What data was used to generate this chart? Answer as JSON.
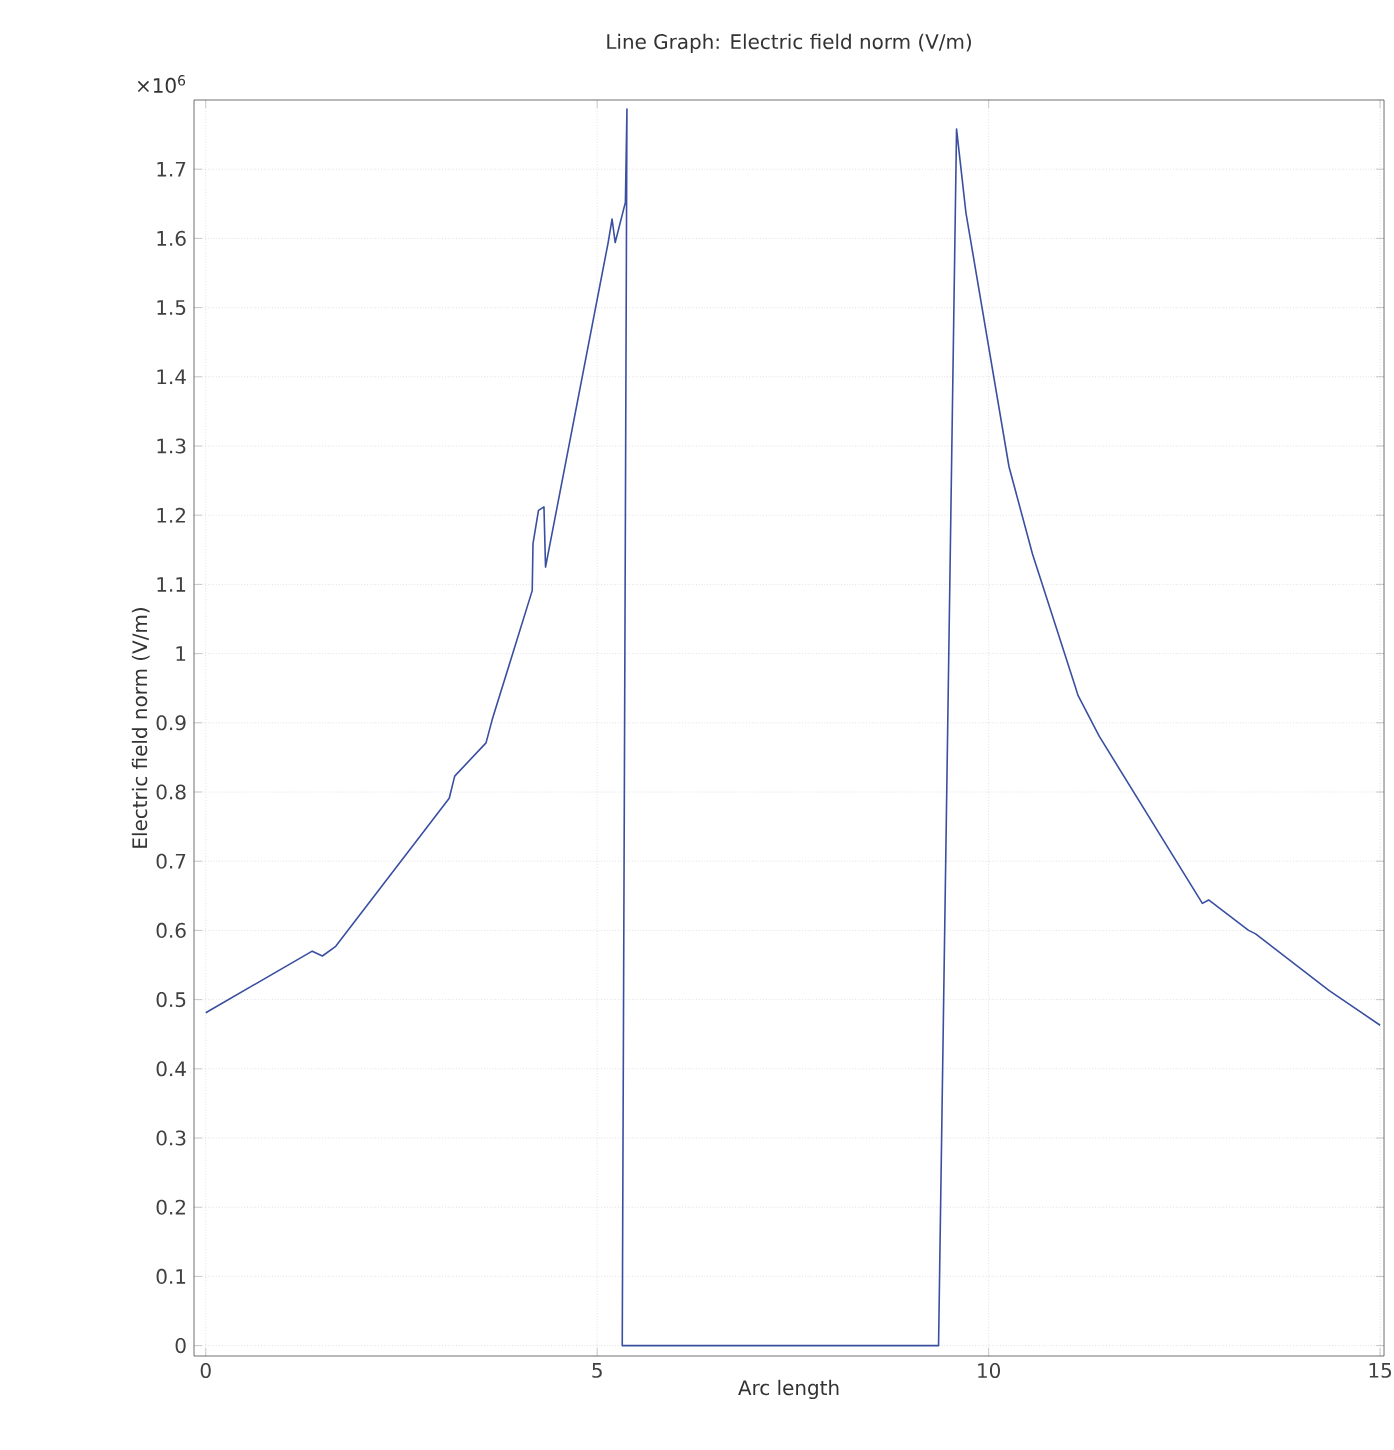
{
  "chart_data": {
    "type": "line",
    "title": "Line Graph: Electric field norm (V/m)",
    "xlabel": "Arc length",
    "ylabel": "Electric field norm (V/m)",
    "annotations": [
      "×10$^{6}$"
    ],
    "x": [
      0,
      1.36,
      1.49,
      1.66,
      3.11,
      3.18,
      3.58,
      3.66,
      4.17,
      4.18,
      4.25,
      4.32,
      4.34,
      5.14,
      5.19,
      5.23,
      5.36,
      5.38,
      5.32,
      9.36,
      9.59,
      9.71,
      10.26,
      10.56,
      11.11,
      11.14,
      11.41,
      12.73,
      12.81,
      13.32,
      13.41,
      14.35,
      15.0
    ],
    "series": [
      {
        "color": "#3a4fa0",
        "values": [
          0.481,
          0.57,
          0.563,
          0.577,
          0.791,
          0.823,
          0.871,
          0.905,
          1.091,
          1.159,
          1.207,
          1.212,
          1.125,
          1.594,
          1.628,
          1.594,
          1.652,
          1.787,
          0,
          0,
          1.758,
          1.637,
          1.27,
          1.144,
          0.951,
          0.94,
          0.881,
          0.639,
          0.644,
          0.6,
          0.595,
          0.513,
          0.463
        ]
      }
    ],
    "xlim": [
      -0.15,
      15.05
    ],
    "ylim": [
      -0.015,
      1.8
    ],
    "xticks": [
      0,
      5,
      10,
      15
    ],
    "yticks": [
      0,
      0.1,
      0.2,
      0.3,
      0.4,
      0.5,
      0.6,
      0.7,
      0.8,
      0.9,
      1,
      1.1,
      1.2,
      1.3,
      1.4,
      1.5,
      1.6,
      1.7
    ],
    "grid": true,
    "marker": "none",
    "line_style": "solid"
  }
}
